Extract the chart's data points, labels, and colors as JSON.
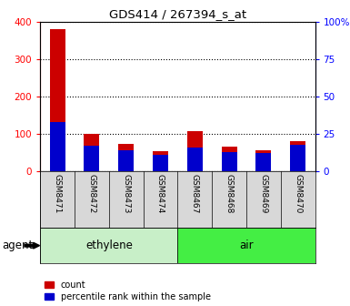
{
  "title": "GDS414 / 267394_s_at",
  "samples": [
    "GSM8471",
    "GSM8472",
    "GSM8473",
    "GSM8474",
    "GSM8467",
    "GSM8468",
    "GSM8469",
    "GSM8470"
  ],
  "count_values": [
    380,
    100,
    73,
    53,
    107,
    65,
    56,
    80
  ],
  "percentile_values": [
    33,
    17,
    14,
    11,
    16,
    13,
    12,
    18
  ],
  "groups": [
    {
      "label": "ethylene",
      "indices": [
        0,
        1,
        2,
        3
      ],
      "color_light": "#c8f0c8",
      "color_bright": "#c8f0c8"
    },
    {
      "label": "air",
      "indices": [
        4,
        5,
        6,
        7
      ],
      "color_light": "#44ee44",
      "color_bright": "#44ee44"
    }
  ],
  "ylim_left": [
    0,
    400
  ],
  "ylim_right": [
    0,
    100
  ],
  "yticks_left": [
    0,
    100,
    200,
    300,
    400
  ],
  "yticks_right": [
    0,
    25,
    50,
    75,
    100
  ],
  "yticklabels_right": [
    "0",
    "25",
    "50",
    "75",
    "100%"
  ],
  "bar_color_count": "#cc0000",
  "bar_color_percentile": "#0000cc",
  "bar_width": 0.45,
  "background_color": "#ffffff",
  "agent_label": "agent",
  "legend_count_label": "count",
  "legend_percentile_label": "percentile rank within the sample",
  "ethylene_color": "#c8efc8",
  "air_color": "#44ee44",
  "sample_bg_color": "#d8d8d8"
}
